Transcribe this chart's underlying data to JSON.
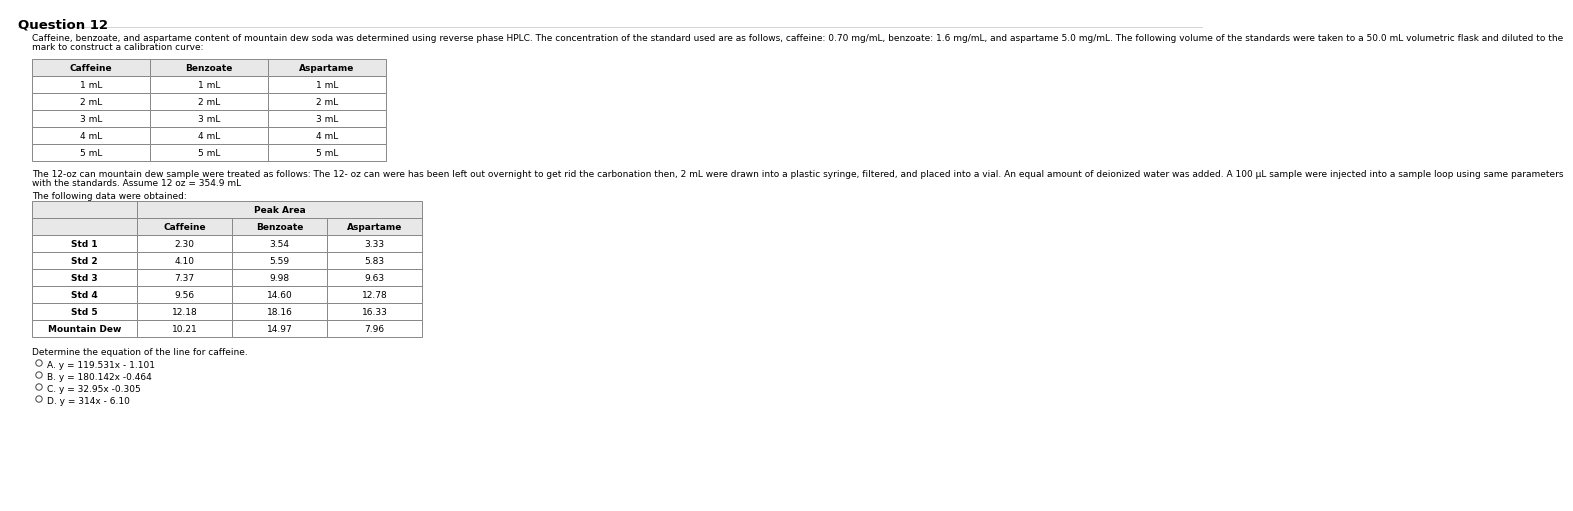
{
  "title": "Question 12",
  "intro_text": "Caffeine, benzoate, and aspartame content of mountain dew soda was determined using reverse phase HPLC. The concentration of the standard used are as follows, caffeine: 0.70 mg/mL, benzoate: 1.6 mg/mL, and aspartame 5.0 mg/mL. The following volume of the standards were taken to a 50.0 mL volumetric flask and diluted to the mark to construct a calibration curve:",
  "table1_headers": [
    "Caffeine",
    "Benzoate",
    "Aspartame"
  ],
  "table1_rows": [
    [
      "1 mL",
      "1 mL",
      "1 mL"
    ],
    [
      "2 mL",
      "2 mL",
      "2 mL"
    ],
    [
      "3 mL",
      "3 mL",
      "3 mL"
    ],
    [
      "4 mL",
      "4 mL",
      "4 mL"
    ],
    [
      "5 mL",
      "5 mL",
      "5 mL"
    ]
  ],
  "sample_text": "The 12-oz can mountain dew sample were treated as follows: The 12- oz can were has been left out overnight to get rid the carbonation then, 2 mL were drawn into a plastic syringe, filtered, and placed into a vial. An equal amount of deionized water was added. A 100 μL sample were injected into a sample loop using same parameters with the standards. Assume 12 oz = 354.9 mL",
  "data_intro": "The following data were obtained:",
  "table2_header_top": "Peak Area",
  "table2_subheaders": [
    "",
    "Caffeine",
    "Benzoate",
    "Aspartame"
  ],
  "table2_rows": [
    [
      "Std 1",
      "2.30",
      "3.54",
      "3.33"
    ],
    [
      "Std 2",
      "4.10",
      "5.59",
      "5.83"
    ],
    [
      "Std 3",
      "7.37",
      "9.98",
      "9.63"
    ],
    [
      "Std 4",
      "9.56",
      "14.60",
      "12.78"
    ],
    [
      "Std 5",
      "12.18",
      "18.16",
      "16.33"
    ],
    [
      "Mountain Dew",
      "10.21",
      "14.97",
      "7.96"
    ]
  ],
  "question_text": "Determine the equation of the line for caffeine.",
  "options": [
    "A. y = 119.531x - 1.101",
    "B. y = 180.142x -0.464",
    "C. y = 32.95x -0.305",
    "D. y = 314x - 6.10"
  ],
  "bg_color": "#ffffff",
  "table_header_bg": "#e8e8e8",
  "table_border_color": "#888888",
  "text_color": "#000000",
  "title_color": "#000000",
  "font_size_title": 8.5,
  "font_size_body": 6.5,
  "font_size_table": 6.5
}
